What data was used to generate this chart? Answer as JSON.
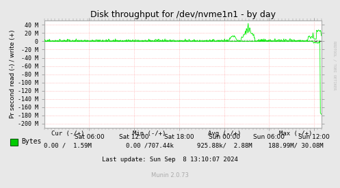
{
  "title": "Disk throughput for /dev/nvme1n1 - by day",
  "ylabel": "Pr second read (-) / write (+)",
  "bg_color": "#E8E8E8",
  "plot_bg_color": "#FFFFFF",
  "line_color": "#00EE00",
  "rrdtool_text": "RRDTOOL / TOBI OETIKER",
  "munin_text": "Munin 2.0.73",
  "ytick_labels": [
    "40 M",
    "20 M",
    "0",
    "-20 M",
    "-40 M",
    "-60 M",
    "-80 M",
    "-100 M",
    "-120 M",
    "-140 M",
    "-160 M",
    "-180 M",
    "-200 M"
  ],
  "ytick_values": [
    40,
    20,
    0,
    -20,
    -40,
    -60,
    -80,
    -100,
    -120,
    -140,
    -160,
    -180,
    -200
  ],
  "ylim": [
    -210,
    50
  ],
  "xtick_labels": [
    "Sat 06:00",
    "Sat 12:00",
    "Sat 18:00",
    "Sun 00:00",
    "Sun 06:00",
    "Sun 12:00"
  ],
  "xtick_values": [
    0.25,
    0.5,
    0.75,
    1.0,
    1.25,
    1.5
  ],
  "xlim": [
    0,
    1.54
  ],
  "legend_label": "Bytes",
  "legend_cur": "Cur (-/+)",
  "legend_cur_val": "0.00 /  1.59M",
  "legend_min": "Min (-/+)",
  "legend_min_val": "0.00 /707.44k",
  "legend_avg": "Avg (-/+)",
  "legend_avg_val": "925.88k/  2.88M",
  "legend_max": "Max (-/+)",
  "legend_max_val": "188.99M/ 30.08M",
  "last_update": "Last update: Sun Sep  8 13:10:07 2024"
}
